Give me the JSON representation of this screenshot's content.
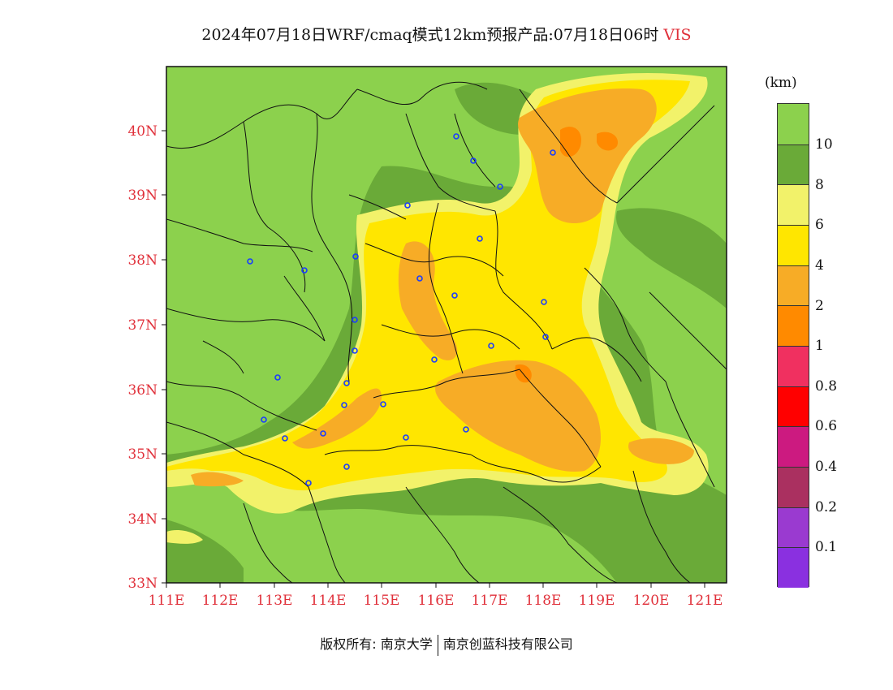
{
  "title": {
    "text": "2024年07月18日WRF/cmaq模式12km预报产品:07月18日06时",
    "variable": "VIS"
  },
  "legend": {
    "unit": "(km)",
    "colors": [
      "#8cd14d",
      "#6aaa38",
      "#f2f26a",
      "#ffe600",
      "#f7ac26",
      "#ff8a00",
      "#f03060",
      "#ff0000",
      "#cc1a80",
      "#aa3060",
      "#9a3ad0",
      "#8a30e0"
    ],
    "labels": [
      "10",
      "8",
      "6",
      "4",
      "2",
      "1",
      "0.8",
      "0.6",
      "0.4",
      "0.2",
      "0.1"
    ]
  },
  "map": {
    "lat_labels": [
      "40N",
      "39N",
      "38N",
      "37N",
      "36N",
      "35N",
      "34N",
      "33N"
    ],
    "lon_labels": [
      "111E",
      "112E",
      "113E",
      "114E",
      "115E",
      "116E",
      "117E",
      "118E",
      "119E",
      "120E",
      "121E"
    ],
    "colors": {
      "land_green": "#8cd14d",
      "dark_green": "#6aaa38",
      "light_yellow": "#f2f26a",
      "yellow": "#ffe600",
      "orange": "#f7ac26",
      "dark_orange": "#ff8a00",
      "border": "#111111",
      "station": "#1a3cff"
    }
  },
  "footer": {
    "left": "版权所有: 南京大学",
    "right": "南京创蓝科技有限公司"
  }
}
